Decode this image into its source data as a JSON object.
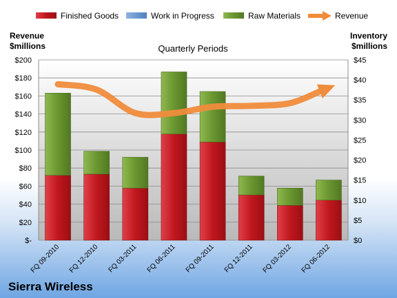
{
  "chart_data": {
    "type": "bar",
    "title": "Quarterly Periods",
    "company": "Sierra Wireless",
    "ylabel_left": [
      "Revenue",
      "$millions"
    ],
    "ylabel_right": [
      "Inventory",
      "$millions"
    ],
    "categories": [
      "FQ 09-2010",
      "FQ 12-2010",
      "FQ 03-2011",
      "FQ 06-2011",
      "FQ 09-2011",
      "FQ 12-2011",
      "FQ 03-2012",
      "FQ 06-2012"
    ],
    "left_axis": {
      "min": 0,
      "max": 200,
      "step": 20,
      "tick_labels": [
        "$-",
        "$20",
        "$40",
        "$60",
        "$80",
        "$100",
        "$120",
        "$140",
        "$160",
        "$180",
        "$200"
      ]
    },
    "right_axis": {
      "min": 0,
      "max": 45,
      "step": 5,
      "tick_labels": [
        "$0",
        "$5",
        "$10",
        "$15",
        "$20",
        "$25",
        "$30",
        "$35",
        "$40",
        "$45"
      ]
    },
    "stacked_series": [
      {
        "name": "Finished Goods",
        "color": "#c0171e",
        "axis": "right",
        "values": [
          16.2,
          16.5,
          13.0,
          26.5,
          24.5,
          11.3,
          8.7,
          10.0
        ]
      },
      {
        "name": "Work in Progress",
        "color": "#4f81bd",
        "axis": "right",
        "values": [
          0,
          0,
          0,
          0,
          0,
          0,
          0,
          0
        ]
      },
      {
        "name": "Raw Materials",
        "color": "#6a9630",
        "axis": "right",
        "values": [
          20.5,
          5.7,
          7.7,
          15.5,
          12.6,
          4.7,
          4.3,
          5.0
        ]
      }
    ],
    "line_series": {
      "name": "Revenue",
      "color": "#f08c3c",
      "axis": "left",
      "values": [
        173,
        167,
        141,
        141,
        148,
        149,
        152,
        169
      ]
    },
    "grid": true,
    "legend": "top"
  }
}
